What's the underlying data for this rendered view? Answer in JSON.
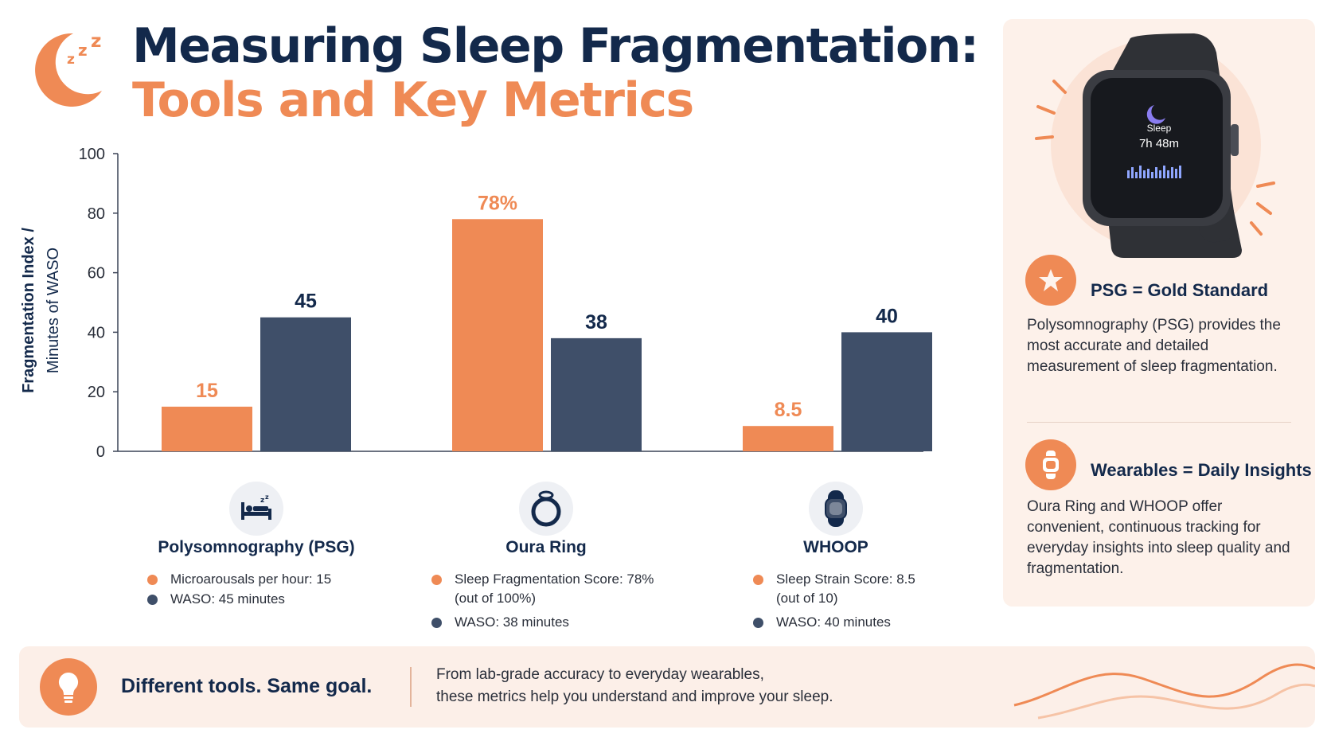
{
  "header": {
    "title_line1": "Measuring Sleep Fragmentation:",
    "title_line2": "Tools and Key Metrics"
  },
  "chart_data": {
    "type": "bar",
    "categories": [
      "Polysomnography (PSG)",
      "Oura Ring",
      "WHOOP"
    ],
    "series": [
      {
        "values": [
          15,
          78,
          8.5
        ],
        "labels": [
          "15",
          "78%",
          "8.5"
        ],
        "color": "#ef8a55"
      },
      {
        "values": [
          45,
          38,
          40
        ],
        "labels": [
          "45",
          "38",
          "40"
        ],
        "color": "#3f4f69"
      }
    ],
    "ylabel_line1": "Fragmentation Index /",
    "ylabel_line2": "Minutes of WASO",
    "ylim": [
      0,
      100
    ],
    "yticks": [
      0,
      20,
      40,
      60,
      80,
      100
    ],
    "grid": false
  },
  "tools": [
    {
      "name": "Polysomnography (PSG)",
      "icon": "bed-icon",
      "metrics": [
        {
          "text": "Microarousals per hour: 15",
          "color": "orange"
        },
        {
          "text": "WASO: 45 minutes",
          "color": "navy"
        }
      ]
    },
    {
      "name": "Oura Ring",
      "icon": "ring-icon",
      "metrics": [
        {
          "text": "Sleep Fragmentation Score: 78%",
          "text2": "(out of 100%)",
          "color": "orange"
        },
        {
          "text": "WASO: 38 minutes",
          "color": "navy"
        }
      ]
    },
    {
      "name": "WHOOP",
      "icon": "wristband-icon",
      "metrics": [
        {
          "text": "Sleep Strain Score: 8.5",
          "text2": "(out of 10)",
          "color": "orange"
        },
        {
          "text": "WASO: 40 minutes",
          "color": "navy"
        }
      ]
    }
  ],
  "side_panel": {
    "watch": {
      "label": "Sleep",
      "duration": "7h 48m"
    },
    "psg": {
      "heading": "PSG = Gold Standard",
      "text": "Polysomnography (PSG) provides the most accurate and detailed measurement of sleep fragmentation."
    },
    "wearables": {
      "heading": "Wearables = Daily Insights",
      "text": "Oura Ring and WHOOP offer convenient, continuous tracking for everyday insights into sleep quality and fragmentation."
    }
  },
  "banner": {
    "headline": "Different tools. Same goal.",
    "text_line1": "From lab-grade accuracy to everyday wearables,",
    "text_line2": "these metrics help you understand and improve your sleep."
  },
  "colors": {
    "orange": "#ef8a55",
    "navy": "#3f4f69",
    "title_navy": "#13294b",
    "panel_bg": "#fdf1ea"
  }
}
